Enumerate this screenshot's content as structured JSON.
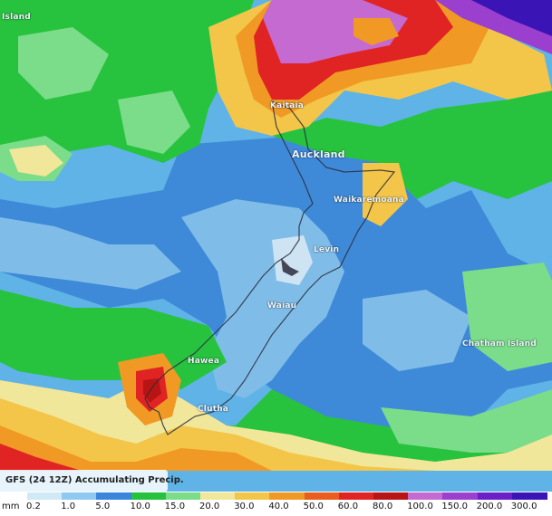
{
  "map": {
    "legend_title": "GFS (24 12Z) Accumulating Precip.",
    "unit": "mm",
    "scale": [
      {
        "label": "0.2",
        "color": "#cfe9f5"
      },
      {
        "label": "1.0",
        "color": "#8fc9ef"
      },
      {
        "label": "5.0",
        "color": "#3b86dc"
      },
      {
        "label": "10.0",
        "color": "#25c13f"
      },
      {
        "label": "15.0",
        "color": "#7bdc8a"
      },
      {
        "label": "20.0",
        "color": "#f1e79a"
      },
      {
        "label": "30.0",
        "color": "#f3c64a"
      },
      {
        "label": "40.0",
        "color": "#f09a25"
      },
      {
        "label": "50.0",
        "color": "#e95d1f"
      },
      {
        "label": "60.0",
        "color": "#e02424"
      },
      {
        "label": "80.0",
        "color": "#b81414"
      },
      {
        "label": "100.0",
        "color": "#c46ad0"
      },
      {
        "label": "150.0",
        "color": "#9b3fcf"
      },
      {
        "label": "200.0",
        "color": "#6a1fc8"
      },
      {
        "label": "300.0",
        "color": "#3a14b5"
      }
    ],
    "places": {
      "island": "Island",
      "kaitaia": "Kaitaia",
      "auckland": "Auckland",
      "waikaremoana": "Waikaremoana",
      "levin": "Levin",
      "waiau": "Waiau",
      "hawea": "Hawea",
      "clutha": "Clutha",
      "chatham": "Chatham Island"
    }
  }
}
